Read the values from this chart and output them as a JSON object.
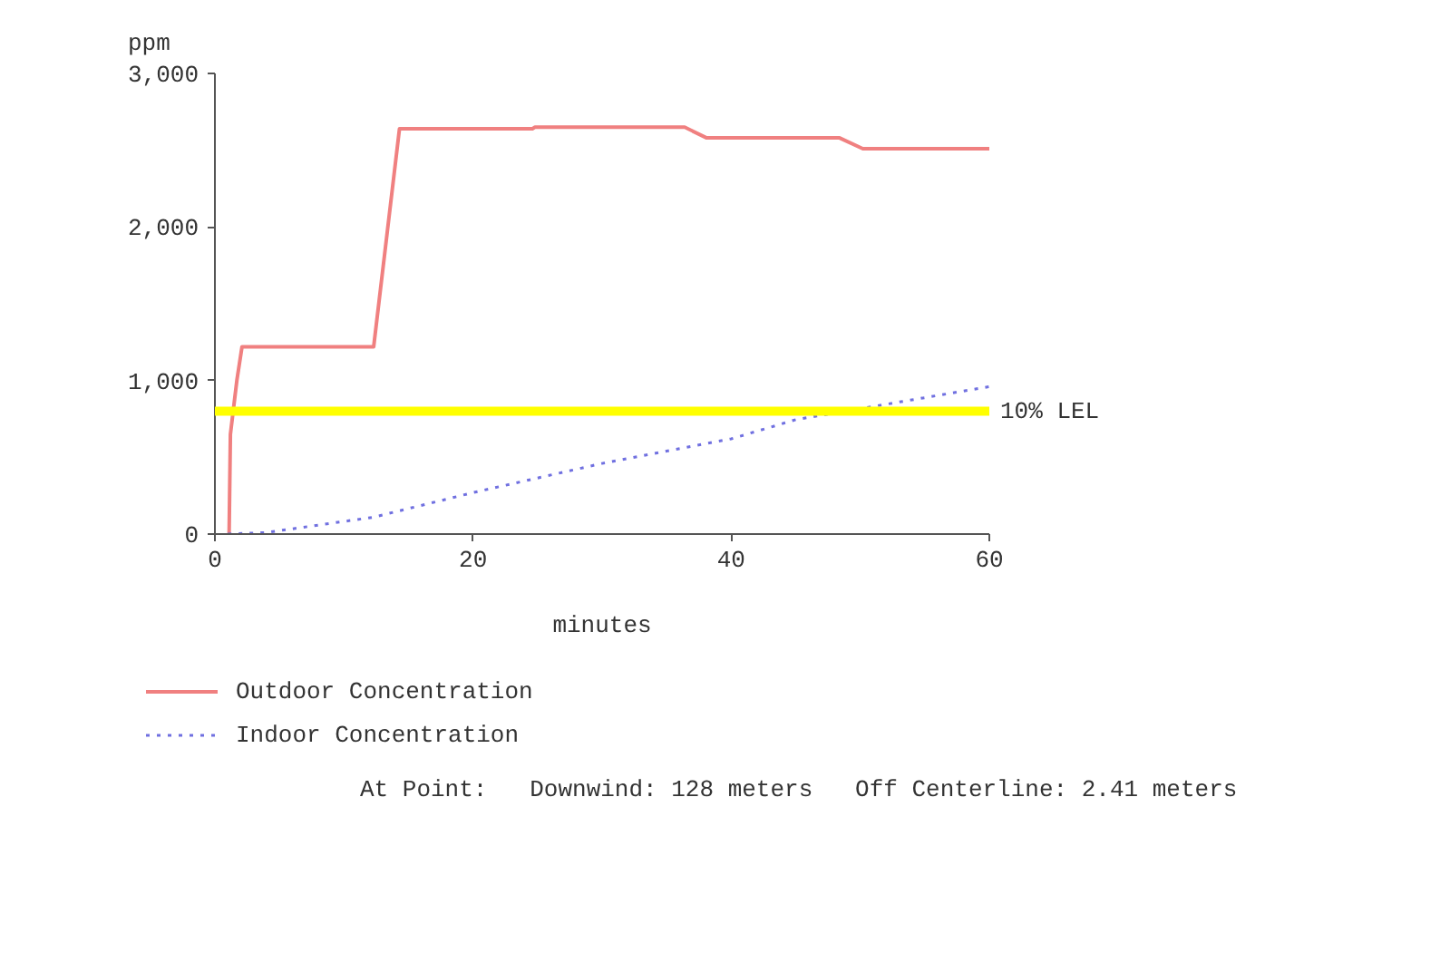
{
  "chart_data": {
    "type": "line",
    "ylabel": "ppm",
    "xlabel": "minutes",
    "x": [
      1.1,
      1.2,
      1.7,
      2.1,
      12.3,
      14.3,
      24.6,
      24.8,
      36.4,
      38.1,
      48.4,
      50.2,
      60
    ],
    "series": [
      {
        "name": "Outdoor Concentration",
        "color": "#f08080",
        "line_style": "solid",
        "values": [
          0,
          650,
          1000,
          1220,
          1220,
          2640,
          2640,
          2650,
          2650,
          2580,
          2580,
          2510,
          2510
        ]
      },
      {
        "name": "Indoor Concentration",
        "color": "#7070e0",
        "line_style": "dotted",
        "x": [
          1,
          4,
          12.3,
          20,
          30,
          40,
          45,
          60
        ],
        "values": [
          0,
          10,
          110,
          270,
          460,
          620,
          745,
          960
        ]
      }
    ],
    "xlim": [
      0,
      60
    ],
    "ylim": [
      0,
      3000
    ],
    "xticks": [
      0,
      20,
      40,
      60
    ],
    "yticks": [
      0,
      {
        "value": 1000,
        "label": "1,000"
      },
      {
        "value": 2000,
        "label": "2,000"
      },
      {
        "value": 3000,
        "label": "3,000"
      }
    ],
    "ref_lines": [
      {
        "axis": "y",
        "value": 800,
        "label": "10% LEL",
        "color": "#ffff00"
      }
    ],
    "annotations": [
      "At Point:   Downwind: 128 meters   Off Centerline: 2.41 meters"
    ],
    "legend": "bottom",
    "grid": false,
    "marker": "none"
  }
}
